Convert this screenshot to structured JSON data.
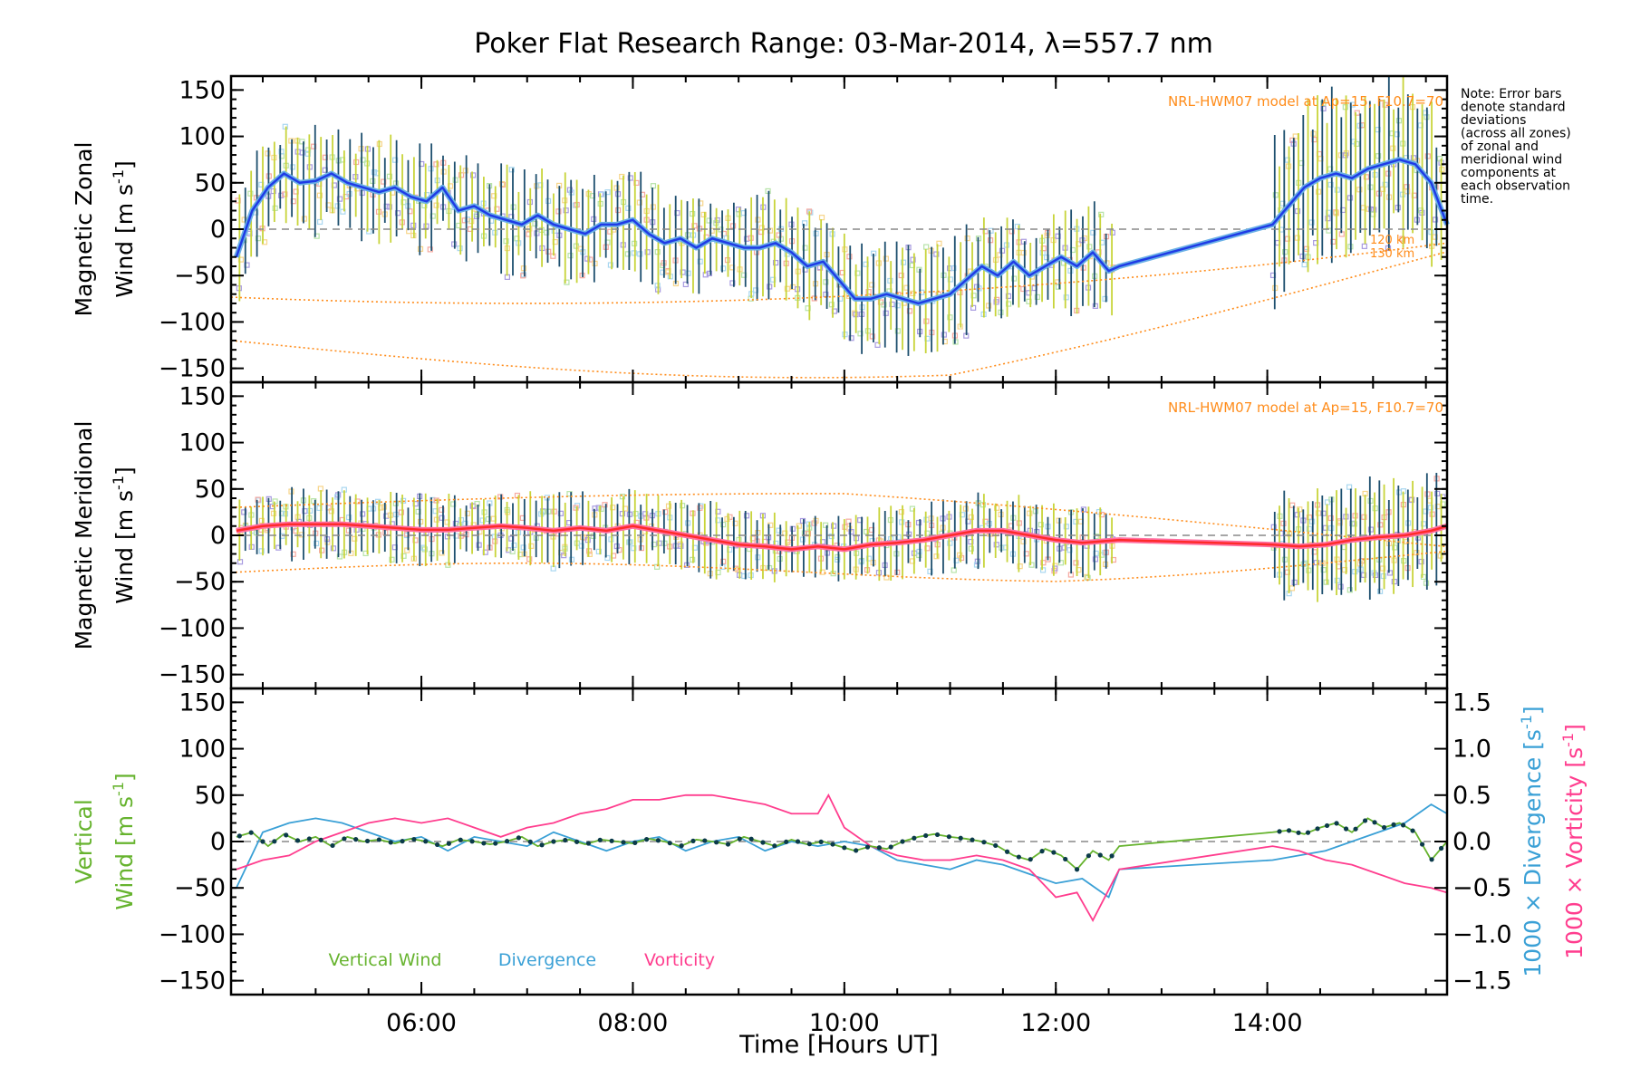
{
  "title": "Poker Flat Research Range: 03-Mar-2014, λ=557.7 nm",
  "colors": {
    "zonal_line": "#1f3be6",
    "zonal_light": "#6ab0e6",
    "meridional_line": "#ff2a2a",
    "meridional_light": "#ff6fa0",
    "vertical": "#66b32e",
    "divergence": "#3aa0d6",
    "vorticity": "#ff3d8e",
    "model": "#ff8c1a",
    "dots": "#0b3a4a",
    "errorbar_dark": "#1d4f6e",
    "errorbar_light": "#c8d43a",
    "scatter_purple": "#a89be0",
    "scatter_salmon": "#f6a9a0",
    "scatter_yellow": "#f7d58a"
  },
  "note": [
    "Note: Error bars",
    "denote standard",
    "deviations",
    "(across all zones)",
    "of zonal and",
    "meridional wind",
    "components at",
    "each observation",
    "time."
  ],
  "model_label": "NRL-HWM07 model at Ap=15, F10.7=70",
  "model_label_top_truncated": "NRL-HWM07 model at Ap=15, F10.7=70",
  "model_altitude_labels": [
    "120 km",
    "130 km"
  ],
  "xaxis": {
    "label": "Time [Hours UT]",
    "ticks": [
      "06:00",
      "08:00",
      "10:00",
      "12:00",
      "14:00"
    ],
    "range_hours": [
      4.2,
      15.7
    ]
  },
  "panels": {
    "zonal": {
      "ylabel_line1": "Magnetic Zonal",
      "ylabel_line2": "Wind [m s",
      "ylabel_sup": "-1",
      "ylabel_close": "]"
    },
    "meridional": {
      "ylabel_line1": "Magnetic Meridional",
      "ylabel_line2": "Wind [m s",
      "ylabel_sup": "-1",
      "ylabel_close": "]"
    },
    "vertical": {
      "ylabel_line1": "Vertical",
      "ylabel_line2": "Wind [m s",
      "ylabel_sup": "-1",
      "ylabel_close": "]",
      "right_label_div": "1000 × Divergence [s",
      "right_label_vort": "1000 × Vorticity [s",
      "right_sup": "-1",
      "right_close": "]",
      "legend": [
        "Vertical Wind",
        "Divergence",
        "Vorticity"
      ]
    }
  },
  "yticks_left": [
    "150",
    "100",
    "50",
    "0",
    "−50",
    "−100",
    "−150"
  ],
  "yticks_right": [
    "1.5",
    "1.0",
    "0.5",
    "0.0",
    "−0.5",
    "−1.0",
    "−1.5"
  ],
  "chart_data": [
    {
      "type": "line",
      "title": "Poker Flat Research Range: 03-Mar-2014, λ=557.7 nm",
      "ylabel": "Magnetic Zonal Wind [m s-1]",
      "ylim": [
        -165,
        165
      ],
      "x_unit": "hours UT",
      "series": [
        {
          "x": [
            4.25,
            4.4,
            4.55,
            4.7,
            4.85,
            5.0,
            5.15,
            5.3,
            5.45,
            5.6,
            5.75,
            5.9,
            6.05,
            6.2,
            6.35,
            6.5,
            6.65,
            6.8,
            6.95,
            7.1,
            7.25,
            7.4,
            7.55,
            7.7,
            7.85,
            8.0,
            8.15,
            8.3,
            8.45,
            8.6,
            8.75,
            8.9,
            9.05,
            9.2,
            9.35,
            9.5,
            9.65,
            9.8,
            9.95,
            10.1,
            10.25,
            10.4,
            10.55,
            10.7,
            10.85,
            11.0,
            11.15,
            11.3,
            11.45,
            11.6,
            11.75,
            11.9,
            12.05,
            12.2,
            12.35,
            12.5,
            12.6,
            14.05,
            14.2,
            14.35,
            14.5,
            14.65,
            14.8,
            14.95,
            15.1,
            15.25,
            15.4,
            15.55,
            15.7
          ],
          "values": [
            -30,
            20,
            45,
            60,
            50,
            52,
            60,
            50,
            45,
            40,
            45,
            35,
            30,
            45,
            20,
            25,
            15,
            10,
            5,
            15,
            5,
            0,
            -5,
            5,
            5,
            10,
            -5,
            -15,
            -10,
            -20,
            -10,
            -15,
            -20,
            -20,
            -15,
            -25,
            -40,
            -35,
            -55,
            -75,
            -75,
            -70,
            -75,
            -80,
            -75,
            -70,
            -55,
            -40,
            -50,
            -35,
            -50,
            -40,
            -30,
            -40,
            -25,
            -45,
            -40,
            5,
            25,
            45,
            55,
            60,
            55,
            65,
            70,
            75,
            70,
            50,
            5
          ]
        }
      ],
      "model_curves": "NRL-HWM07 model at Ap=15, F10.7=70"
    },
    {
      "type": "line",
      "ylabel": "Magnetic Meridional Wind [m s-1]",
      "ylim": [
        -165,
        165
      ],
      "x_unit": "hours UT",
      "series": [
        {
          "x": [
            4.25,
            4.5,
            4.75,
            5.0,
            5.25,
            5.5,
            5.75,
            6.0,
            6.25,
            6.5,
            6.75,
            7.0,
            7.25,
            7.5,
            7.75,
            8.0,
            8.25,
            8.5,
            8.75,
            9.0,
            9.25,
            9.5,
            9.75,
            10.0,
            10.25,
            10.5,
            10.75,
            11.0,
            11.25,
            11.5,
            11.75,
            12.0,
            12.25,
            12.6,
            14.05,
            14.3,
            14.55,
            14.8,
            15.05,
            15.3,
            15.55,
            15.7
          ],
          "values": [
            5,
            10,
            12,
            12,
            12,
            10,
            8,
            6,
            6,
            8,
            10,
            8,
            5,
            8,
            5,
            10,
            5,
            0,
            -5,
            -10,
            -12,
            -15,
            -12,
            -15,
            -10,
            -8,
            -5,
            0,
            5,
            5,
            0,
            -5,
            -8,
            -5,
            -10,
            -12,
            -10,
            -5,
            -2,
            0,
            5,
            10
          ]
        }
      ]
    },
    {
      "type": "line",
      "ylabel": "Vertical Wind [m s-1]",
      "ylim": [
        -165,
        165
      ],
      "y2label": "1000 × Divergence [s-1] / 1000 × Vorticity [s-1]",
      "y2lim": [
        -1.65,
        1.65
      ],
      "x_unit": "hours UT",
      "series": [
        {
          "name": "Vertical Wind",
          "axis": "left",
          "x": [
            4.25,
            4.4,
            4.55,
            4.7,
            4.85,
            5.0,
            5.15,
            5.3,
            5.45,
            5.6,
            5.75,
            5.9,
            6.05,
            6.2,
            6.35,
            6.5,
            6.65,
            6.8,
            6.95,
            7.1,
            7.25,
            7.4,
            7.55,
            7.7,
            7.85,
            8.0,
            8.15,
            8.3,
            8.45,
            8.6,
            8.75,
            8.9,
            9.05,
            9.2,
            9.35,
            9.5,
            9.65,
            9.8,
            9.95,
            10.1,
            10.25,
            10.4,
            10.55,
            10.7,
            10.85,
            11.0,
            11.15,
            11.3,
            11.45,
            11.6,
            11.75,
            11.9,
            12.05,
            12.2,
            12.35,
            12.5,
            12.6,
            14.05,
            14.2,
            14.35,
            14.5,
            14.65,
            14.8,
            14.95,
            15.1,
            15.25,
            15.4,
            15.55,
            15.7
          ],
          "values": [
            5,
            10,
            -5,
            8,
            0,
            5,
            -5,
            5,
            0,
            2,
            -2,
            3,
            0,
            -5,
            2,
            0,
            -3,
            0,
            5,
            -5,
            0,
            2,
            -3,
            2,
            0,
            -2,
            3,
            0,
            -5,
            2,
            0,
            -3,
            5,
            0,
            -5,
            2,
            -3,
            0,
            -5,
            -10,
            -5,
            -8,
            0,
            5,
            8,
            5,
            3,
            0,
            -5,
            -15,
            -20,
            -8,
            -15,
            -30,
            -10,
            -20,
            -5,
            10,
            12,
            8,
            15,
            20,
            10,
            25,
            15,
            20,
            10,
            -20,
            0
          ]
        },
        {
          "name": "Divergence",
          "axis": "right",
          "x": [
            4.25,
            4.5,
            4.75,
            5.0,
            5.25,
            5.5,
            5.75,
            6.0,
            6.25,
            6.5,
            6.75,
            7.0,
            7.25,
            7.5,
            7.75,
            8.0,
            8.25,
            8.5,
            8.75,
            9.0,
            9.25,
            9.5,
            9.75,
            10.0,
            10.25,
            10.5,
            10.75,
            11.0,
            11.25,
            11.5,
            11.75,
            12.0,
            12.25,
            12.5,
            12.6,
            14.05,
            14.3,
            14.55,
            14.8,
            15.05,
            15.3,
            15.55,
            15.7
          ],
          "values": [
            -0.5,
            0.1,
            0.2,
            0.25,
            0.2,
            0.1,
            0.0,
            0.05,
            -0.1,
            0.05,
            0.0,
            -0.05,
            0.1,
            0.0,
            -0.1,
            0.0,
            0.05,
            -0.1,
            0.0,
            0.05,
            -0.1,
            0.0,
            -0.05,
            0.0,
            -0.05,
            -0.2,
            -0.25,
            -0.3,
            -0.2,
            -0.25,
            -0.35,
            -0.45,
            -0.4,
            -0.6,
            -0.3,
            -0.2,
            -0.15,
            -0.1,
            0.0,
            0.1,
            0.2,
            0.4,
            0.3
          ]
        },
        {
          "name": "Vorticity",
          "axis": "right",
          "x": [
            4.25,
            4.5,
            4.75,
            5.0,
            5.25,
            5.5,
            5.75,
            6.0,
            6.25,
            6.5,
            6.75,
            7.0,
            7.25,
            7.5,
            7.75,
            8.0,
            8.25,
            8.5,
            8.75,
            9.0,
            9.25,
            9.5,
            9.75,
            9.85,
            10.0,
            10.25,
            10.5,
            10.75,
            11.0,
            11.25,
            11.5,
            11.75,
            12.0,
            12.2,
            12.35,
            12.6,
            14.05,
            14.3,
            14.55,
            14.8,
            15.05,
            15.3,
            15.55,
            15.7
          ],
          "values": [
            -0.3,
            -0.2,
            -0.15,
            0.0,
            0.1,
            0.2,
            0.25,
            0.2,
            0.25,
            0.15,
            0.05,
            0.15,
            0.2,
            0.3,
            0.35,
            0.45,
            0.45,
            0.5,
            0.5,
            0.45,
            0.4,
            0.3,
            0.3,
            0.5,
            0.15,
            -0.05,
            -0.15,
            -0.2,
            -0.2,
            -0.15,
            -0.2,
            -0.3,
            -0.6,
            -0.55,
            -0.85,
            -0.3,
            -0.05,
            -0.1,
            -0.2,
            -0.25,
            -0.35,
            -0.45,
            -0.5,
            -0.55
          ]
        }
      ]
    }
  ]
}
